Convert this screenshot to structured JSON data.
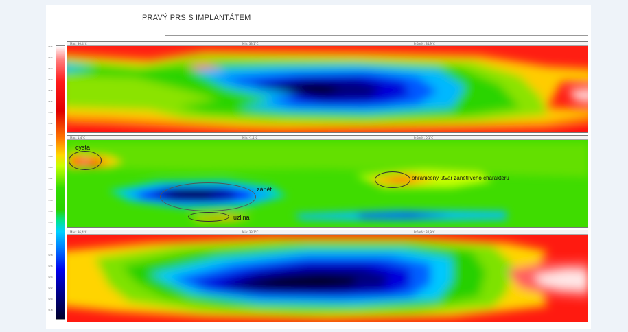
{
  "title": "PRAVÝ PRS S IMPLANTÁTEM",
  "colors": {
    "scale": [
      "#ffffff",
      "#ff1a1a",
      "#ff7a00",
      "#ffd800",
      "#33dd00",
      "#00d0ff",
      "#007cff",
      "#0000ee",
      "#00002a"
    ]
  },
  "scale_ticks": [
    "36.6",
    "36.4",
    "36.2",
    "36.0",
    "35.8",
    "35.6",
    "35.4",
    "35.2",
    "35.0",
    "34.8",
    "34.6",
    "34.4",
    "34.2",
    "34.0",
    "33.8",
    "33.6",
    "33.4",
    "33.2",
    "33.0",
    "32.8",
    "32.6",
    "32.4",
    "32.2",
    "32.0",
    "31.8"
  ],
  "panels": [
    {
      "header_left": "Max: 36,4°C",
      "header_mid": "Min: 33,1°C",
      "header_right": "Průměr: 34,9°C"
    },
    {
      "header_left": "Max: 1,4°C",
      "header_mid": "Min: -1,4°C",
      "header_right": "Průměr: 0,1°C",
      "annotations": {
        "cysta": "cysta",
        "zanet": "zánět",
        "uzlina": "uzlina",
        "utvar": "ohraničený útvar zánětlivého charakteru"
      }
    },
    {
      "header_left": "Max: 36,4°C",
      "header_mid": "Min: 33,1°C",
      "header_right": "Průměr: 34,9°C"
    }
  ]
}
